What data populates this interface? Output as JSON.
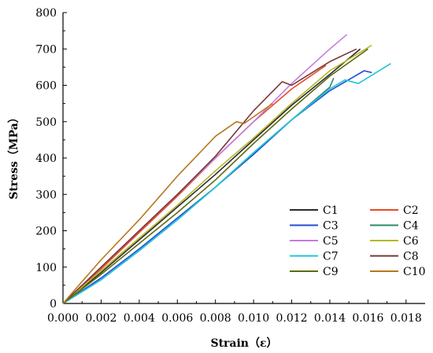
{
  "chart_data": {
    "type": "line",
    "title": "",
    "xlabel": "Strain（ε）",
    "ylabel": "Stress（MPa）",
    "xlim": [
      0,
      0.019
    ],
    "ylim": [
      0,
      800
    ],
    "xticks": [
      0,
      0.002,
      0.004,
      0.006,
      0.008,
      0.01,
      0.012,
      0.014,
      0.016,
      0.018
    ],
    "xtick_labels": [
      "0.000",
      "0.002",
      "0.004",
      "0.006",
      "0.008",
      "0.010",
      "0.012",
      "0.014",
      "0.016",
      "0.018"
    ],
    "yticks": [
      0,
      100,
      200,
      300,
      400,
      500,
      600,
      700,
      800
    ],
    "ytick_labels": [
      "0",
      "100",
      "200",
      "300",
      "400",
      "500",
      "600",
      "700",
      "800"
    ],
    "grid": false,
    "legend_position": "bottom-right",
    "series": [
      {
        "name": "C1",
        "color": "#2b2b2b",
        "x": [
          0,
          0.002,
          0.004,
          0.006,
          0.008,
          0.01,
          0.012,
          0.014,
          0.0156
        ],
        "y": [
          0,
          85,
          175,
          265,
          355,
          450,
          545,
          630,
          700
        ]
      },
      {
        "name": "C2",
        "color": "#e84a2a",
        "x": [
          0,
          0.002,
          0.004,
          0.006,
          0.008,
          0.01,
          0.012,
          0.0138
        ],
        "y": [
          0,
          95,
          195,
          295,
          400,
          500,
          590,
          655
        ]
      },
      {
        "name": "C3",
        "color": "#1f4fd6",
        "x": [
          0,
          0.002,
          0.004,
          0.006,
          0.008,
          0.01,
          0.012,
          0.014,
          0.0158,
          0.0162
        ],
        "y": [
          0,
          70,
          150,
          235,
          320,
          410,
          505,
          585,
          640,
          635
        ]
      },
      {
        "name": "C4",
        "color": "#2a8a6a",
        "x": [
          0,
          0.002,
          0.004,
          0.006,
          0.008,
          0.01,
          0.012,
          0.014,
          0.0142
        ],
        "y": [
          0,
          65,
          145,
          230,
          320,
          415,
          505,
          595,
          620
        ]
      },
      {
        "name": "C5",
        "color": "#c57be0",
        "x": [
          0,
          0.002,
          0.004,
          0.006,
          0.008,
          0.01,
          0.012,
          0.014,
          0.0149
        ],
        "y": [
          0,
          100,
          200,
          300,
          400,
          500,
          605,
          700,
          740
        ]
      },
      {
        "name": "C6",
        "color": "#b5b82a",
        "x": [
          0,
          0.002,
          0.004,
          0.006,
          0.008,
          0.01,
          0.012,
          0.014,
          0.0162
        ],
        "y": [
          0,
          90,
          180,
          270,
          365,
          455,
          550,
          640,
          710
        ]
      },
      {
        "name": "C7",
        "color": "#21c4d6",
        "x": [
          0,
          0.002,
          0.004,
          0.006,
          0.008,
          0.01,
          0.012,
          0.014,
          0.0148,
          0.0155,
          0.0172
        ],
        "y": [
          0,
          65,
          145,
          230,
          320,
          415,
          505,
          590,
          615,
          605,
          660
        ]
      },
      {
        "name": "C8",
        "color": "#7a3838",
        "x": [
          0,
          0.002,
          0.004,
          0.006,
          0.008,
          0.01,
          0.0115,
          0.012,
          0.014,
          0.0154
        ],
        "y": [
          0,
          100,
          200,
          300,
          405,
          530,
          610,
          600,
          665,
          700
        ]
      },
      {
        "name": "C9",
        "color": "#5e6b10",
        "x": [
          0,
          0.002,
          0.004,
          0.006,
          0.008,
          0.01,
          0.012,
          0.014,
          0.016
        ],
        "y": [
          0,
          80,
          165,
          250,
          340,
          440,
          535,
          625,
          700
        ]
      },
      {
        "name": "C10",
        "color": "#b5781e",
        "x": [
          0,
          0.002,
          0.004,
          0.006,
          0.008,
          0.0091,
          0.0095,
          0.011
        ],
        "y": [
          0,
          120,
          230,
          350,
          460,
          500,
          495,
          550
        ]
      }
    ]
  }
}
